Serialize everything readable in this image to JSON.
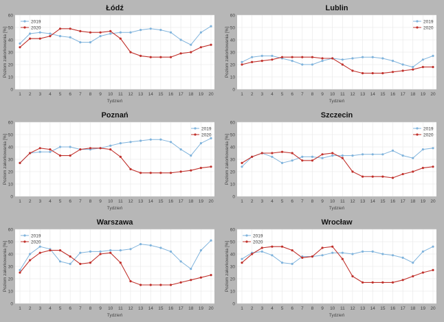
{
  "colors": {
    "s2019": "#7fb3dc",
    "s2020": "#c0302b",
    "grid": "#e6e6e6",
    "background": "#b7b7b7"
  },
  "chart_data": [
    {
      "type": "line",
      "title": "Łódź",
      "xlabel": "Tydzień",
      "ylabel": "Poziom zakorkowania [%]",
      "x": [
        1,
        2,
        3,
        4,
        5,
        6,
        7,
        8,
        9,
        10,
        11,
        12,
        13,
        14,
        15,
        16,
        17,
        18,
        19,
        20
      ],
      "ylim": [
        0,
        60
      ],
      "yticks": [
        0,
        10,
        20,
        30,
        40,
        50,
        60
      ],
      "grid": true,
      "legend": "top-left",
      "series": [
        {
          "name": "2019",
          "values": [
            37,
            45,
            46,
            45,
            43,
            42,
            38,
            38,
            43,
            45,
            46,
            46,
            48,
            49,
            48,
            46,
            40,
            36,
            46,
            51
          ]
        },
        {
          "name": "2020",
          "values": [
            34,
            41,
            41,
            43,
            49,
            49,
            47,
            46,
            46,
            47,
            41,
            30,
            27,
            26,
            26,
            26,
            29,
            30,
            34,
            36
          ]
        }
      ]
    },
    {
      "type": "line",
      "title": "Lublin",
      "xlabel": "Tydzień",
      "ylabel": "Poziom zakorkowania [%]",
      "x": [
        1,
        2,
        3,
        4,
        5,
        6,
        7,
        8,
        9,
        10,
        11,
        12,
        13,
        14,
        15,
        16,
        17,
        18,
        19,
        20
      ],
      "ylim": [
        0,
        60
      ],
      "yticks": [
        0,
        10,
        20,
        30,
        40,
        50,
        60
      ],
      "grid": true,
      "legend": "top-right",
      "series": [
        {
          "name": "2019",
          "values": [
            22,
            26,
            27,
            27,
            25,
            23,
            20,
            20,
            23,
            25,
            24,
            25,
            26,
            26,
            25,
            23,
            20,
            18,
            24,
            27
          ]
        },
        {
          "name": "2020",
          "values": [
            20,
            22,
            23,
            24,
            26,
            26,
            26,
            26,
            25,
            25,
            20,
            15,
            13,
            13,
            13,
            14,
            15,
            16,
            18,
            18
          ]
        }
      ]
    },
    {
      "type": "line",
      "title": "Poznań",
      "xlabel": "Tydzień",
      "ylabel": "Poziom zakorkowania [%]",
      "x": [
        1,
        2,
        3,
        4,
        5,
        6,
        7,
        8,
        9,
        10,
        11,
        12,
        13,
        14,
        15,
        16,
        17,
        18,
        19,
        20
      ],
      "ylim": [
        0,
        60
      ],
      "yticks": [
        0,
        10,
        20,
        30,
        40,
        50,
        60
      ],
      "grid": true,
      "legend": "top-right",
      "series": [
        {
          "name": "2019",
          "values": [
            27,
            35,
            36,
            36,
            40,
            40,
            38,
            38,
            39,
            41,
            43,
            44,
            45,
            46,
            46,
            44,
            38,
            33,
            43,
            47
          ]
        },
        {
          "name": "2020",
          "values": [
            27,
            35,
            39,
            38,
            33,
            33,
            38,
            39,
            39,
            38,
            32,
            22,
            19,
            19,
            19,
            19,
            20,
            21,
            23,
            24
          ]
        }
      ]
    },
    {
      "type": "line",
      "title": "Szczecin",
      "xlabel": "Tydzień",
      "ylabel": "Poziom zakorkowania [%]",
      "x": [
        1,
        2,
        3,
        4,
        5,
        6,
        7,
        8,
        9,
        10,
        11,
        12,
        13,
        14,
        15,
        16,
        17,
        18,
        19,
        20
      ],
      "ylim": [
        0,
        60
      ],
      "yticks": [
        0,
        10,
        20,
        30,
        40,
        50,
        60
      ],
      "grid": true,
      "legend": "top-right",
      "series": [
        {
          "name": "2019",
          "values": [
            24,
            32,
            35,
            32,
            27,
            29,
            32,
            32,
            31,
            33,
            33,
            33,
            34,
            34,
            34,
            37,
            33,
            31,
            38,
            39
          ]
        },
        {
          "name": "2020",
          "values": [
            27,
            32,
            35,
            35,
            36,
            35,
            29,
            29,
            34,
            35,
            31,
            20,
            16,
            16,
            16,
            15,
            18,
            20,
            23,
            24
          ]
        }
      ]
    },
    {
      "type": "line",
      "title": "Warszawa",
      "xlabel": "Tydzień",
      "ylabel": "Poziom zakorkowania [%]",
      "x": [
        1,
        2,
        3,
        4,
        5,
        6,
        7,
        8,
        9,
        10,
        11,
        12,
        13,
        14,
        15,
        16,
        17,
        18,
        19,
        20
      ],
      "ylim": [
        0,
        60
      ],
      "yticks": [
        0,
        10,
        20,
        30,
        40,
        50,
        60
      ],
      "grid": true,
      "legend": "top-left",
      "series": [
        {
          "name": "2019",
          "values": [
            27,
            40,
            46,
            44,
            34,
            32,
            41,
            42,
            42,
            43,
            43,
            44,
            48,
            47,
            45,
            42,
            34,
            28,
            43,
            51
          ]
        },
        {
          "name": "2020",
          "values": [
            25,
            35,
            41,
            43,
            43,
            38,
            32,
            33,
            40,
            41,
            33,
            18,
            15,
            15,
            15,
            15,
            17,
            19,
            21,
            23
          ]
        }
      ]
    },
    {
      "type": "line",
      "title": "Wrocław",
      "xlabel": "Tydzień",
      "ylabel": "Poziom zakorkowania [%]",
      "x": [
        1,
        2,
        3,
        4,
        5,
        6,
        7,
        8,
        9,
        10,
        11,
        12,
        13,
        14,
        15,
        16,
        17,
        18,
        19,
        20
      ],
      "ylim": [
        0,
        60
      ],
      "yticks": [
        0,
        10,
        20,
        30,
        40,
        50,
        60
      ],
      "grid": true,
      "legend": "top-left",
      "series": [
        {
          "name": "2019",
          "values": [
            36,
            41,
            42,
            39,
            33,
            32,
            38,
            38,
            39,
            41,
            41,
            40,
            42,
            42,
            40,
            39,
            37,
            33,
            42,
            46
          ]
        },
        {
          "name": "2020",
          "values": [
            33,
            40,
            45,
            46,
            46,
            43,
            37,
            38,
            45,
            46,
            36,
            22,
            17,
            17,
            17,
            17,
            19,
            22,
            25,
            27
          ]
        }
      ]
    }
  ]
}
